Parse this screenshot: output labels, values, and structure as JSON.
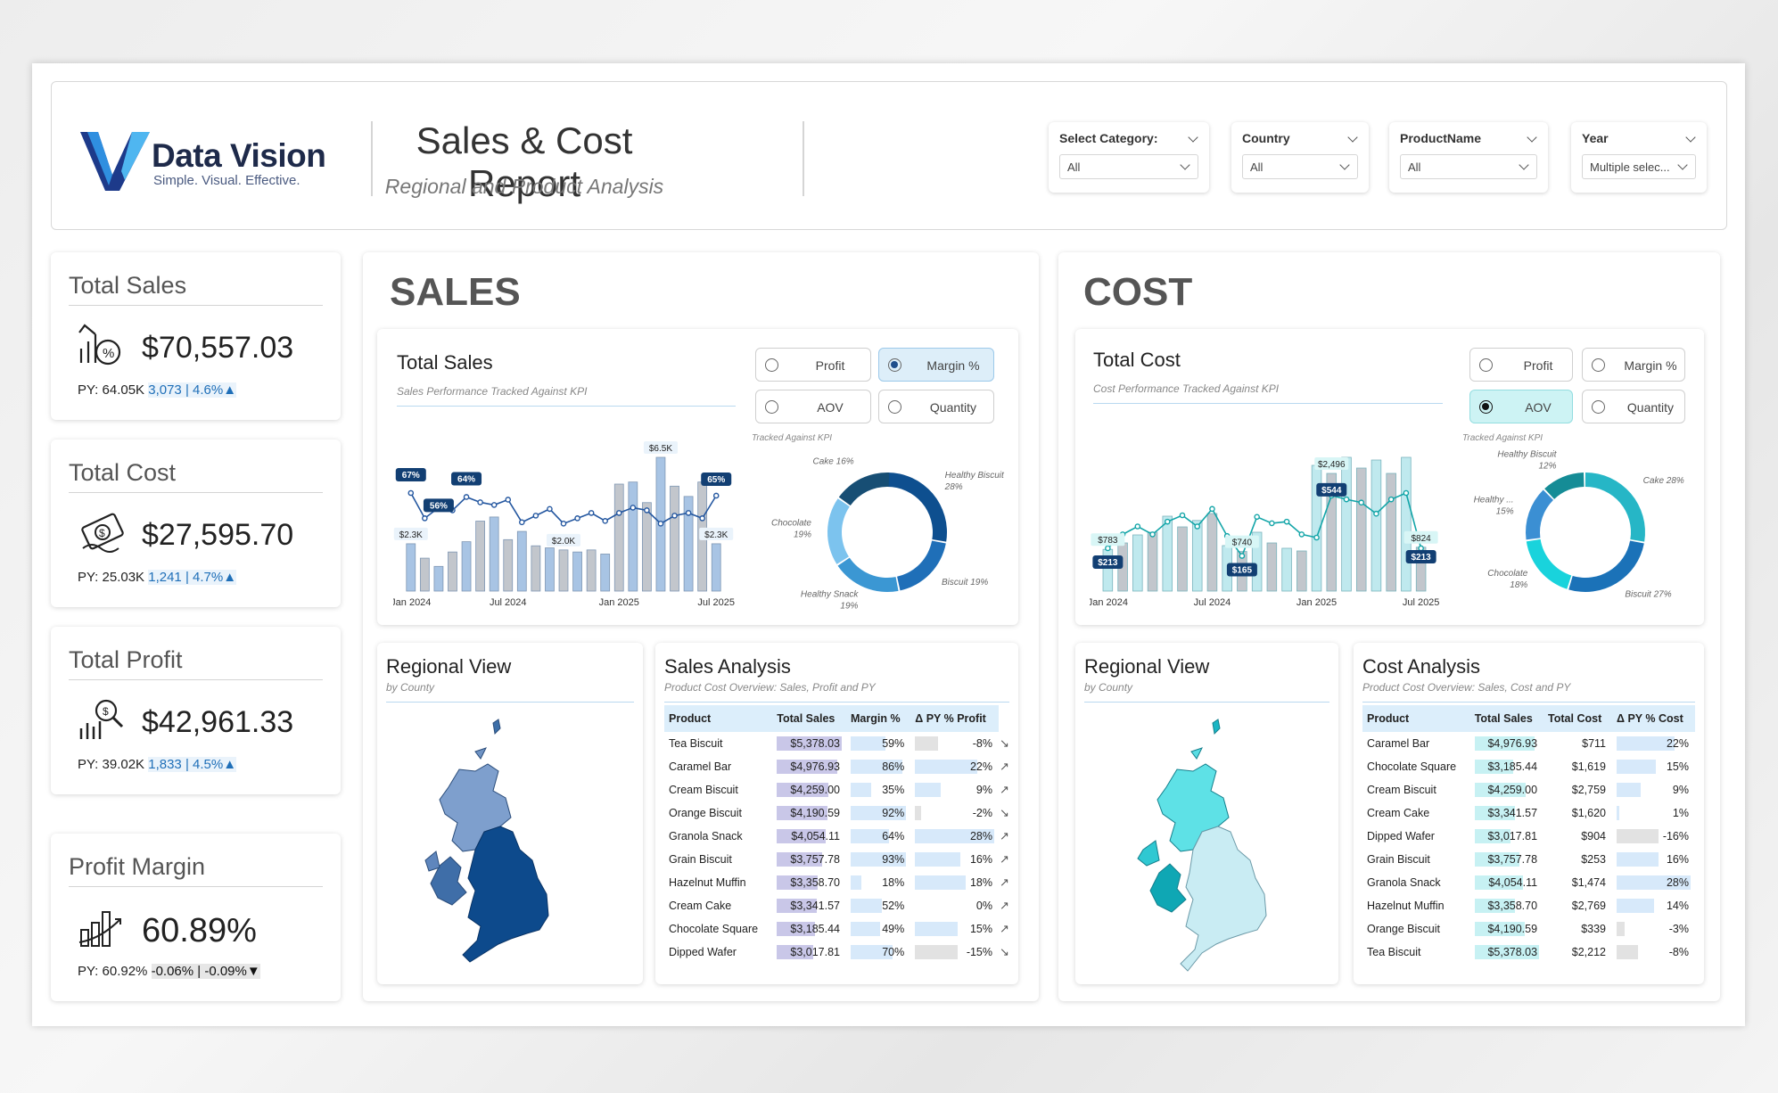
{
  "header": {
    "brand": "Data Vision",
    "tagline": "Simple. Visual. Effective.",
    "title": "Sales & Cost Report",
    "subtitle": "Regional and Product Analysis",
    "slicers": [
      {
        "label": "Select Category:",
        "value": "All"
      },
      {
        "label": "Country",
        "value": "All"
      },
      {
        "label": "ProductName",
        "value": "All"
      },
      {
        "label": "Year",
        "value": "Multiple selec..."
      }
    ]
  },
  "kpis": [
    {
      "title": "Total Sales",
      "value": "$70,557.03",
      "py": "PY: 64.05K",
      "delta": "3,073 | 4.6%▲",
      "icon": "growth-percent-icon"
    },
    {
      "title": "Total Cost",
      "value": "$27,595.70",
      "py": "PY: 25.03K",
      "delta": "1,241 | 4.7%▲",
      "icon": "money-icon"
    },
    {
      "title": "Total Profit",
      "value": "$42,961.33",
      "py": "PY: 39.02K",
      "delta": "1,833 | 4.5%▲",
      "icon": "profit-search-icon"
    },
    {
      "title": "Profit Margin",
      "value": "60.89%",
      "py": "PY: 60.92%",
      "delta": "-0.06% | -0.09%▼",
      "icon": "bar-growth-icon"
    }
  ],
  "sales": {
    "heading": "SALES",
    "chart_title": "Total Sales",
    "chart_sub": "Sales Performance Tracked Against KPI",
    "options": [
      "Profit",
      "Margin %",
      "AOV",
      "Quantity"
    ],
    "selected": "Margin %",
    "tracked": "Tracked Against KPI",
    "regional_title": "Regional View",
    "regional_sub": "by County",
    "analysis_title": "Sales Analysis",
    "analysis_sub": "Product Cost Overview: Sales, Profit and PY",
    "table_headers": [
      "Product",
      "Total Sales",
      "Margin %",
      "Δ PY % Profit"
    ],
    "rows": [
      [
        "Tea Biscuit",
        "$5,378.03",
        "59%",
        "-8%"
      ],
      [
        "Caramel Bar",
        "$4,976.93",
        "86%",
        "22%"
      ],
      [
        "Cream Biscuit",
        "$4,259.00",
        "35%",
        "9%"
      ],
      [
        "Orange Biscuit",
        "$4,190.59",
        "92%",
        "-2%"
      ],
      [
        "Granola Snack",
        "$4,054.11",
        "64%",
        "28%"
      ],
      [
        "Grain Biscuit",
        "$3,757.78",
        "93%",
        "16%"
      ],
      [
        "Hazelnut Muffin",
        "$3,358.70",
        "18%",
        "18%"
      ],
      [
        "Cream Cake",
        "$3,341.57",
        "52%",
        "0%"
      ],
      [
        "Chocolate Square",
        "$3,185.44",
        "49%",
        "15%"
      ],
      [
        "Dipped Wafer",
        "$3,017.81",
        "70%",
        "-15%"
      ]
    ]
  },
  "cost": {
    "heading": "COST",
    "chart_title": "Total Cost",
    "chart_sub": "Cost Performance Tracked Against KPI",
    "options": [
      "Profit",
      "Margin %",
      "AOV",
      "Quantity"
    ],
    "selected": "AOV",
    "tracked": "Tracked Against KPI",
    "regional_title": "Regional View",
    "regional_sub": "by County",
    "analysis_title": "Cost Analysis",
    "analysis_sub": "Product Cost Overview: Sales, Cost and PY",
    "table_headers": [
      "Product",
      "Total Sales",
      "Total Cost",
      "Δ PY % Cost"
    ],
    "rows": [
      [
        "Caramel Bar",
        "$4,976.93",
        "$711",
        "22%"
      ],
      [
        "Chocolate Square",
        "$3,185.44",
        "$1,619",
        "15%"
      ],
      [
        "Cream Biscuit",
        "$4,259.00",
        "$2,759",
        "9%"
      ],
      [
        "Cream Cake",
        "$3,341.57",
        "$1,620",
        "1%"
      ],
      [
        "Dipped Wafer",
        "$3,017.81",
        "$904",
        "-16%"
      ],
      [
        "Grain Biscuit",
        "$3,757.78",
        "$253",
        "16%"
      ],
      [
        "Granola Snack",
        "$4,054.11",
        "$1,474",
        "28%"
      ],
      [
        "Hazelnut Muffin",
        "$3,358.70",
        "$2,769",
        "14%"
      ],
      [
        "Orange Biscuit",
        "$4,190.59",
        "$339",
        "-3%"
      ],
      [
        "Tea Biscuit",
        "$5,378.03",
        "$2,212",
        "-8%"
      ]
    ]
  },
  "chart_data": [
    {
      "type": "bar",
      "title": "Total Sales",
      "x_ticks": [
        "Jan 2024",
        "Jul 2024",
        "Jan 2025",
        "Jul 2025"
      ],
      "series": [
        {
          "values": [
            2.3,
            1.6,
            1.2,
            1.9,
            2.4,
            3.4,
            3.6,
            2.5,
            2.9,
            2.2,
            2.1,
            2.0,
            1.9,
            2.0,
            1.8,
            5.2,
            5.3,
            4.3,
            6.5,
            5.1,
            4.6,
            5.3,
            2.3
          ]
        },
        {
          "values": [
            67,
            48,
            56,
            54,
            64,
            60,
            58,
            62,
            45,
            50,
            55,
            44,
            48,
            52,
            46,
            52,
            56,
            54,
            44,
            50,
            52,
            48,
            65
          ]
        }
      ],
      "labels": {
        "sales": [
          "$2.3K",
          "$6.5K",
          "$2.0K",
          "$2.3K"
        ],
        "margin": [
          "67%",
          "56%",
          "64%",
          "65%"
        ]
      }
    },
    {
      "type": "pie",
      "title": "Sales by Category",
      "slices": [
        {
          "label": "Healthy Biscuit",
          "pct": 28
        },
        {
          "label": "Biscuit",
          "pct": 19
        },
        {
          "label": "Healthy Snack",
          "pct": 19
        },
        {
          "label": "Chocolate",
          "pct": 19
        },
        {
          "label": "Cake",
          "pct": 16
        }
      ],
      "colors": [
        "#0e4f8f",
        "#1f6fb8",
        "#3b97d3",
        "#7cc3ee",
        "#174e74"
      ]
    },
    {
      "type": "bar",
      "title": "Total Cost",
      "x_ticks": [
        "Jan 2024",
        "Jul 2024",
        "Jan 2025",
        "Jul 2025"
      ],
      "series": [
        {
          "values": [
            0.78,
            0.9,
            1.05,
            1.1,
            1.4,
            1.2,
            1.32,
            1.45,
            0.85,
            0.74,
            1.1,
            0.9,
            0.8,
            0.75,
            2.35,
            2.2,
            2.5,
            2.3,
            2.45,
            2.2,
            2.5,
            0.82
          ]
        },
        {
          "values": [
            213,
            300,
            350,
            300,
            380,
            420,
            350,
            460,
            290,
            165,
            410,
            370,
            380,
            300,
            280,
            544,
            520,
            500,
            430,
            520,
            560,
            213
          ]
        }
      ],
      "labels": {
        "cost": [
          "$783",
          "$740",
          "$2,496",
          "$824"
        ],
        "aov": [
          "$213",
          "$165",
          "$544",
          "$213"
        ]
      }
    },
    {
      "type": "pie",
      "title": "Cost by Category",
      "slices": [
        {
          "label": "Cake",
          "pct": 28
        },
        {
          "label": "Biscuit",
          "pct": 27
        },
        {
          "label": "Chocolate",
          "pct": 18
        },
        {
          "label": "Healthy ...",
          "pct": 15
        },
        {
          "label": "Healthy Biscuit",
          "pct": 12
        }
      ],
      "colors": [
        "#26b6c6",
        "#1b72b8",
        "#19d3dc",
        "#3b8fd3",
        "#158c96"
      ]
    }
  ]
}
